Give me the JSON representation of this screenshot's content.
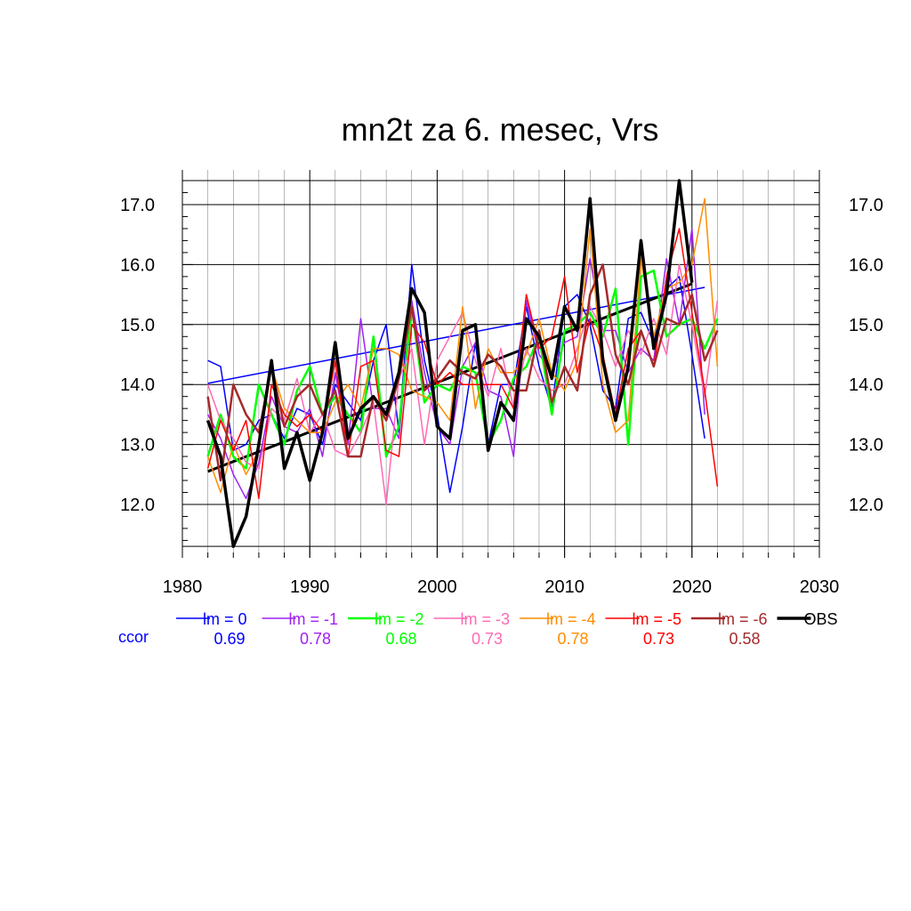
{
  "chart_data": {
    "type": "line",
    "title": "mn2t za 6. mesec, Vrs",
    "xlabel": "",
    "ylabel": "",
    "xlim": [
      1980,
      2030
    ],
    "ylim": [
      11.2,
      17.5
    ],
    "x_ticks": [
      "1980",
      "1990",
      "2000",
      "2010",
      "2020",
      "2030"
    ],
    "y_ticks": [
      "12.0",
      "13.0",
      "14.0",
      "15.0",
      "16.0",
      "17.0"
    ],
    "grid": true,
    "legend_placement": "bottom",
    "ccor_label": "ccor",
    "ccor_color": "#0000ff",
    "series": [
      {
        "name": "lm = 0",
        "color": "#0000ff",
        "width": 1.5,
        "ccor": "0.69",
        "x": [
          1982,
          1983,
          1984,
          1985,
          1986,
          1987,
          1988,
          1989,
          1990,
          1991,
          1992,
          1993,
          1994,
          1995,
          1996,
          1997,
          1998,
          1999,
          2000,
          2001,
          2002,
          2003,
          2004,
          2005,
          2006,
          2007,
          2008,
          2009,
          2010,
          2011,
          2012,
          2013,
          2014,
          2015,
          2016,
          2017,
          2018,
          2019,
          2020,
          2021
        ],
        "y": [
          14.4,
          14.3,
          12.9,
          13.0,
          13.4,
          13.5,
          13.1,
          13.6,
          13.5,
          13.0,
          14.0,
          13.7,
          13.4,
          14.4,
          15.0,
          13.2,
          16.0,
          14.4,
          13.5,
          12.2,
          13.3,
          14.7,
          13.0,
          14.0,
          14.0,
          15.3,
          14.3,
          13.6,
          15.3,
          15.5,
          15.0,
          13.9,
          13.6,
          15.1,
          15.2,
          14.7,
          15.6,
          15.8,
          14.5,
          13.1
        ]
      },
      {
        "name": "lm = -1",
        "color": "#a020f0",
        "width": 1.5,
        "ccor": "0.78",
        "x": [
          1982,
          1983,
          1984,
          1985,
          1986,
          1987,
          1988,
          1989,
          1990,
          1991,
          1992,
          1993,
          1994,
          1995,
          1996,
          1997,
          1998,
          1999,
          2000,
          2001,
          2002,
          2003,
          2004,
          2005,
          2006,
          2007,
          2008,
          2009,
          2010,
          2011,
          2012,
          2013,
          2014,
          2015,
          2016,
          2017,
          2018,
          2019,
          2020,
          2021
        ],
        "y": [
          13.5,
          13.1,
          12.5,
          12.1,
          12.7,
          13.8,
          13.3,
          13.2,
          13.6,
          12.8,
          14.2,
          13.0,
          15.1,
          13.6,
          13.6,
          13.1,
          15.4,
          14.2,
          13.3,
          13.0,
          14.3,
          14.7,
          13.9,
          13.8,
          12.8,
          15.4,
          14.5,
          14.2,
          14.7,
          14.8,
          16.1,
          14.9,
          14.9,
          14.2,
          14.6,
          14.4,
          16.1,
          15.0,
          16.6,
          13.5
        ]
      },
      {
        "name": "lm = -2",
        "color": "#00ff00",
        "width": 2.5,
        "ccor": "0.68",
        "x": [
          1982,
          1983,
          1984,
          1985,
          1986,
          1987,
          1988,
          1989,
          1990,
          1991,
          1992,
          1993,
          1994,
          1995,
          1996,
          1997,
          1998,
          1999,
          2000,
          2001,
          2002,
          2003,
          2004,
          2005,
          2006,
          2007,
          2008,
          2009,
          2010,
          2011,
          2012,
          2013,
          2014,
          2015,
          2016,
          2017,
          2018,
          2019,
          2020,
          2021,
          2022
        ],
        "y": [
          12.8,
          13.5,
          12.8,
          12.6,
          14.0,
          13.5,
          13.0,
          13.9,
          14.3,
          13.5,
          13.8,
          13.5,
          13.2,
          14.8,
          12.8,
          13.3,
          15.3,
          13.7,
          14.0,
          13.9,
          14.3,
          14.2,
          13.0,
          13.4,
          14.1,
          14.3,
          14.8,
          13.5,
          14.9,
          15.0,
          15.2,
          14.8,
          15.6,
          13.0,
          15.8,
          15.9,
          14.8,
          15.0,
          15.1,
          14.6,
          15.1
        ]
      },
      {
        "name": "lm = -3",
        "color": "#ff69b4",
        "width": 1.5,
        "ccor": "0.73",
        "x": [
          1982,
          1983,
          1984,
          1985,
          1986,
          1987,
          1988,
          1989,
          1990,
          1991,
          1992,
          1993,
          1994,
          1995,
          1996,
          1997,
          1998,
          1999,
          2000,
          2001,
          2002,
          2003,
          2004,
          2005,
          2006,
          2007,
          2008,
          2009,
          2010,
          2011,
          2012,
          2013,
          2014,
          2015,
          2016,
          2017,
          2018,
          2019,
          2020,
          2021,
          2022
        ],
        "y": [
          14.0,
          13.4,
          13.1,
          12.7,
          12.6,
          13.6,
          13.4,
          14.1,
          13.2,
          13.5,
          12.9,
          12.8,
          13.2,
          13.7,
          12.0,
          14.1,
          14.6,
          13.0,
          14.4,
          14.8,
          15.2,
          14.4,
          13.8,
          14.6,
          13.6,
          14.6,
          14.1,
          13.9,
          14.0,
          14.6,
          15.3,
          14.9,
          14.3,
          14.9,
          14.5,
          15.1,
          14.5,
          16.0,
          15.0,
          13.8,
          15.4
        ]
      },
      {
        "name": "lm = -4",
        "color": "#ff8c00",
        "width": 1.5,
        "ccor": "0.78",
        "x": [
          1982,
          1983,
          1984,
          1985,
          1986,
          1987,
          1988,
          1989,
          1990,
          1991,
          1992,
          1993,
          1994,
          1995,
          1996,
          1997,
          1998,
          1999,
          2000,
          2001,
          2002,
          2003,
          2004,
          2005,
          2006,
          2007,
          2008,
          2009,
          2010,
          2011,
          2012,
          2013,
          2014,
          2015,
          2016,
          2017,
          2018,
          2019,
          2020,
          2021,
          2022
        ],
        "y": [
          12.8,
          12.2,
          13.0,
          12.5,
          12.9,
          14.3,
          13.6,
          13.4,
          13.2,
          13.2,
          13.7,
          14.0,
          13.6,
          14.6,
          14.6,
          14.5,
          13.9,
          13.8,
          13.7,
          13.4,
          15.3,
          13.6,
          14.6,
          14.2,
          14.2,
          14.5,
          15.1,
          14.2,
          13.9,
          14.4,
          16.6,
          14.0,
          13.2,
          13.4,
          16.1,
          14.8,
          15.6,
          15.7,
          16.0,
          17.1,
          14.3
        ]
      },
      {
        "name": "lm = -5",
        "color": "#ff0000",
        "width": 1.5,
        "ccor": "0.73",
        "x": [
          1982,
          1983,
          1984,
          1985,
          1986,
          1987,
          1988,
          1989,
          1990,
          1991,
          1992,
          1993,
          1994,
          1995,
          1996,
          1997,
          1998,
          1999,
          2000,
          2001,
          2002,
          2003,
          2004,
          2005,
          2006,
          2007,
          2008,
          2009,
          2010,
          2011,
          2012,
          2013,
          2014,
          2015,
          2016,
          2017,
          2018,
          2019,
          2020,
          2021,
          2022
        ],
        "y": [
          12.6,
          13.4,
          12.9,
          13.4,
          12.1,
          14.0,
          13.5,
          13.3,
          13.5,
          13.2,
          14.4,
          12.8,
          14.3,
          14.4,
          12.9,
          12.8,
          15.0,
          14.7,
          14.0,
          14.2,
          14.0,
          14.0,
          14.0,
          14.0,
          13.6,
          15.5,
          14.6,
          14.8,
          15.8,
          14.2,
          15.1,
          14.5,
          13.5,
          14.6,
          14.9,
          14.3,
          15.8,
          16.6,
          15.2,
          13.9,
          12.3
        ]
      },
      {
        "name": "lm = -6",
        "color": "#a52a2a",
        "width": 2.5,
        "ccor": "0.58",
        "x": [
          1982,
          1983,
          1984,
          1985,
          1986,
          1987,
          1988,
          1989,
          1990,
          1991,
          1992,
          1993,
          1994,
          1995,
          1996,
          1997,
          1998,
          1999,
          2000,
          2001,
          2002,
          2003,
          2004,
          2005,
          2006,
          2007,
          2008,
          2009,
          2010,
          2011,
          2012,
          2013,
          2014,
          2015,
          2016,
          2017,
          2018,
          2019,
          2020,
          2021,
          2022
        ],
        "y": [
          13.8,
          12.4,
          14.0,
          13.5,
          13.2,
          14.3,
          13.3,
          13.8,
          14.0,
          13.5,
          13.9,
          12.8,
          12.8,
          13.8,
          13.4,
          14.1,
          15.3,
          13.9,
          14.1,
          14.4,
          14.2,
          14.1,
          14.5,
          14.3,
          13.9,
          13.9,
          14.9,
          13.7,
          14.3,
          13.9,
          15.5,
          16.0,
          14.5,
          14.0,
          14.9,
          14.3,
          15.1,
          15.0,
          15.5,
          14.4,
          14.9
        ]
      },
      {
        "name": "OBS",
        "color": "#000000",
        "width": 3.5,
        "ccor": "",
        "x": [
          1982,
          1983,
          1984,
          1985,
          1986,
          1987,
          1988,
          1989,
          1990,
          1991,
          1992,
          1993,
          1994,
          1995,
          1996,
          1997,
          1998,
          1999,
          2000,
          2001,
          2002,
          2003,
          2004,
          2005,
          2006,
          2007,
          2008,
          2009,
          2010,
          2011,
          2012,
          2013,
          2014,
          2015,
          2016,
          2017,
          2018,
          2019,
          2020
        ],
        "y": [
          13.4,
          12.8,
          11.3,
          11.8,
          13.0,
          14.4,
          12.6,
          13.2,
          12.4,
          13.2,
          14.7,
          13.1,
          13.6,
          13.8,
          13.5,
          14.2,
          15.6,
          15.2,
          13.3,
          13.1,
          14.9,
          15.0,
          12.9,
          13.7,
          13.4,
          15.1,
          14.8,
          14.1,
          15.3,
          14.9,
          17.1,
          14.4,
          13.4,
          14.3,
          16.4,
          14.6,
          15.5,
          17.4,
          15.7
        ]
      }
    ],
    "trend_lines": [
      {
        "of": "lm = 0",
        "color": "#0000ff",
        "width": 1.5,
        "x": [
          1982,
          2021
        ],
        "y": [
          14.02,
          15.62
        ]
      },
      {
        "of": "OBS",
        "color": "#000000",
        "width": 3,
        "x": [
          1982,
          2020
        ],
        "y": [
          12.55,
          15.68
        ]
      }
    ]
  }
}
